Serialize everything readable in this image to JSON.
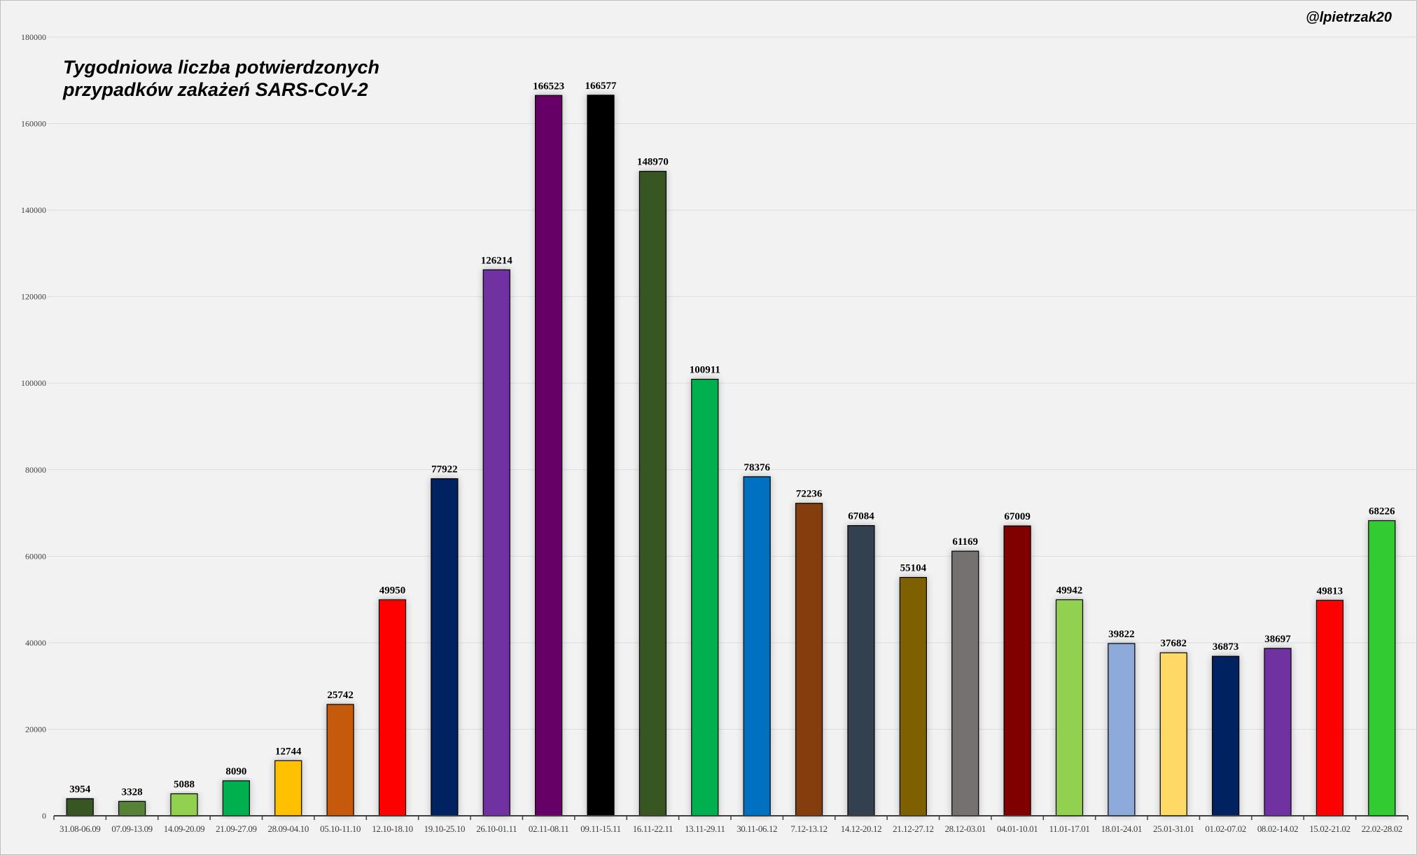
{
  "chart_data": {
    "type": "bar",
    "title": "Tygodniowa liczba potwierdzonych przypadków zakażeń SARS-CoV-2",
    "title_lines": [
      "Tygodniowa liczba potwierdzonych",
      "przypadków zakażeń SARS-CoV-2"
    ],
    "watermark": "@lpietrzak20",
    "xlabel": "",
    "ylabel": "",
    "ylim": [
      0,
      180000
    ],
    "yticks": [
      0,
      20000,
      40000,
      60000,
      80000,
      100000,
      120000,
      140000,
      160000,
      180000
    ],
    "grid": true,
    "legend": "none",
    "categories": [
      "31.08-06.09",
      "07.09-13.09",
      "14.09-20.09",
      "21.09-27.09",
      "28.09-04.10",
      "05.10-11.10",
      "12.10-18.10",
      "19.10-25.10",
      "26.10-01.11",
      "02.11-08.11",
      "09.11-15.11",
      "16.11-22.11",
      "13.11-29.11",
      "30.11-06.12",
      "7.12-13.12",
      "14.12-20.12",
      "21.12-27.12",
      "28.12-03.01",
      "04.01-10.01",
      "11.01-17.01",
      "18.01-24.01",
      "25.01-31.01",
      "01.02-07.02",
      "08.02-14.02",
      "15.02-21.02",
      "22.02-28.02"
    ],
    "values": [
      3954,
      3328,
      5088,
      8090,
      12744,
      25742,
      49950,
      77922,
      126214,
      166523,
      166577,
      148970,
      100911,
      78376,
      72236,
      67084,
      55104,
      61169,
      67009,
      49942,
      39822,
      37682,
      36873,
      38697,
      49813,
      68226
    ],
    "colors": [
      "#375623",
      "#548235",
      "#92d050",
      "#00b050",
      "#ffc000",
      "#c55a11",
      "#ff0000",
      "#002060",
      "#7030a0",
      "#660066",
      "#000000",
      "#375623",
      "#00b050",
      "#0070c0",
      "#843c0c",
      "#323f4f",
      "#7f6000",
      "#767171",
      "#800000",
      "#92d050",
      "#8eaadb",
      "#ffd966",
      "#002060",
      "#7030a0",
      "#ff0000",
      "#33cc33"
    ]
  }
}
